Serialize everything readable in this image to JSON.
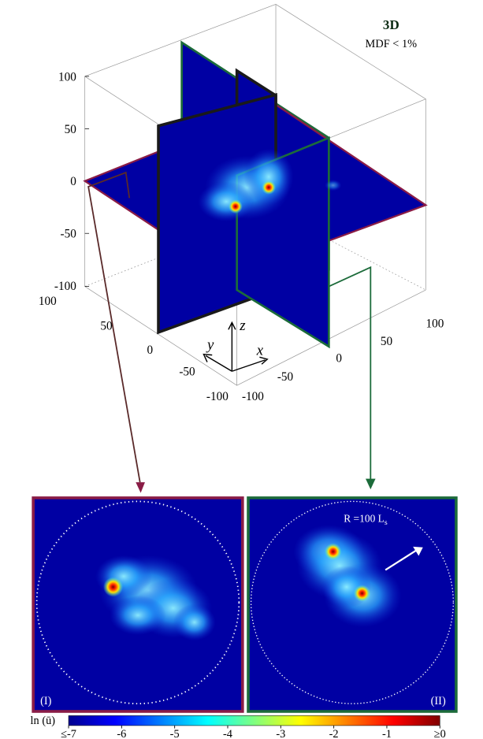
{
  "title": "3D",
  "subtitle": "MDF < 1%",
  "z_ticks": [
    "100",
    "50",
    "0",
    "-50",
    "-100"
  ],
  "y_ticks": [
    "100",
    "50",
    "0",
    "-50",
    "-100"
  ],
  "x_ticks": [
    "-100",
    "-50",
    "0",
    "50",
    "100"
  ],
  "axes": {
    "x": "x",
    "y": "y",
    "z": "z"
  },
  "panels": [
    {
      "label": "(I)",
      "frame_color": "#8a1c46"
    },
    {
      "label": "(II)",
      "frame_color": "#1c6b3a"
    }
  ],
  "radius_label": "R =100 L",
  "radius_sub": "s",
  "colorbar": {
    "label": "ln (ū)",
    "ticks": [
      "≤-7",
      "-6",
      "-5",
      "-4",
      "-3",
      "-2",
      "-1",
      "≥0"
    ]
  },
  "colors": {
    "field": "#0000a3",
    "xz_plane": "#8a1c46",
    "yz_plane": "#1c6b3a",
    "xy_plane": "#1a1a1a"
  }
}
